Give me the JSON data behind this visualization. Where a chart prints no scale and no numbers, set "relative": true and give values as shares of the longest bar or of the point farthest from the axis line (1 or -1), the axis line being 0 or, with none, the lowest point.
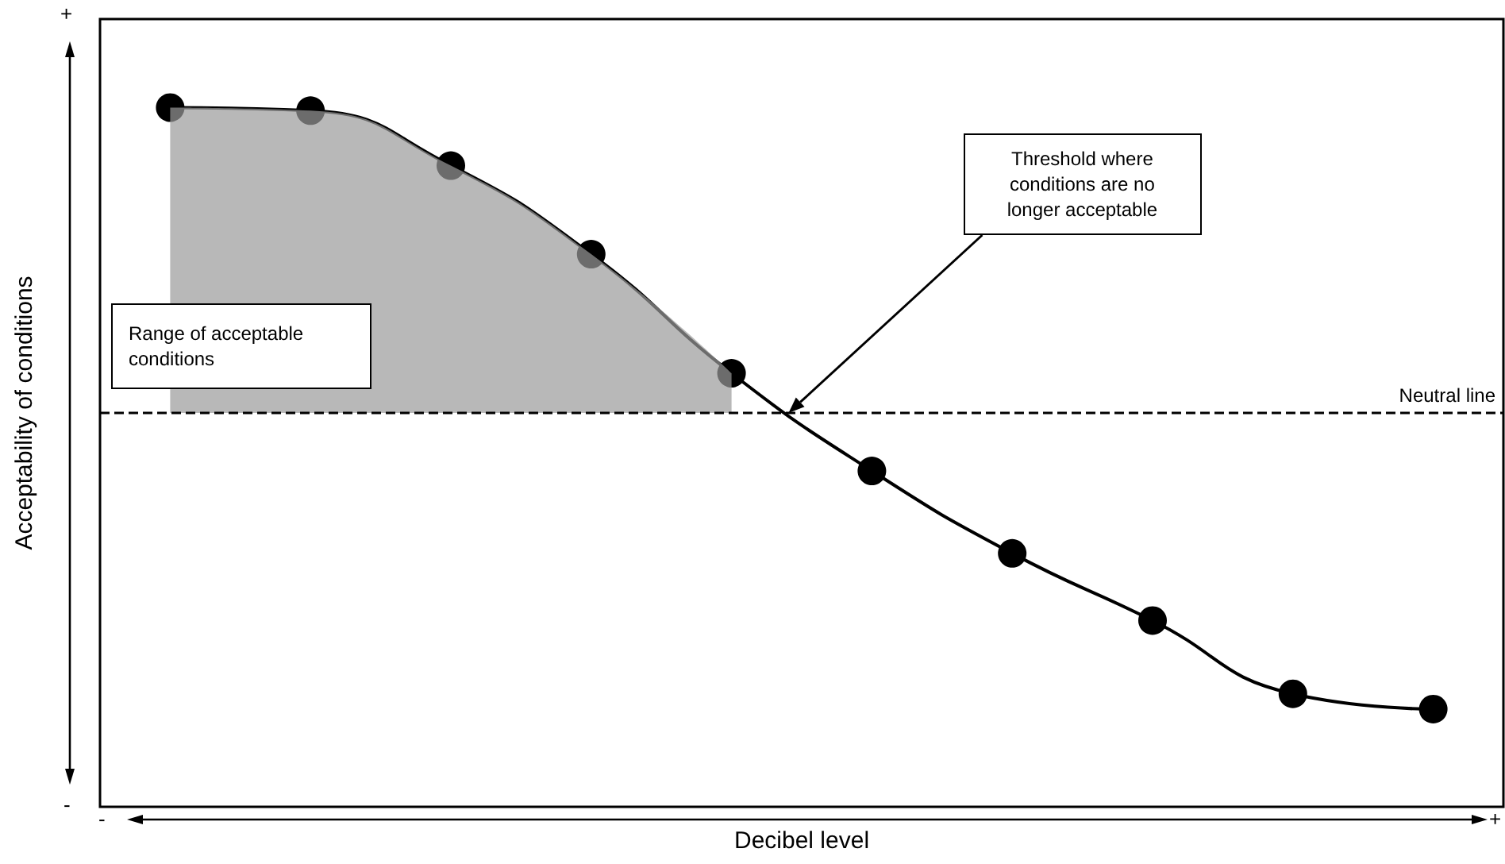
{
  "chart_data": {
    "type": "line",
    "relative": true,
    "xlabel": "Decibel level",
    "ylabel": "Acceptability of conditions",
    "categories": [
      null,
      null,
      null,
      null,
      null,
      null,
      null,
      null,
      null,
      null
    ],
    "series": [
      {
        "type": "area",
        "marker": "none",
        "color": "#9a9a9a",
        "values": [
          1.0,
          0.99,
          0.81,
          0.52,
          0.13,
          null,
          null,
          null,
          null,
          null
        ]
      },
      {
        "type": "line",
        "color": "#000000",
        "values": [
          1.0,
          0.99,
          0.81,
          0.52,
          0.13,
          -0.19,
          -0.46,
          -0.68,
          -0.92,
          -0.97
        ]
      }
    ],
    "ref_lines": [
      {
        "axis": "y",
        "value": 0,
        "label": "Neutral line",
        "line_style": "dashed",
        "color": "#000000"
      }
    ],
    "annotations": [
      "Range of acceptable conditions",
      "Threshold where conditions are no longer acceptable",
      "+",
      "-",
      "-",
      "+"
    ],
    "marker": "circle",
    "grid": false,
    "legend": false
  }
}
